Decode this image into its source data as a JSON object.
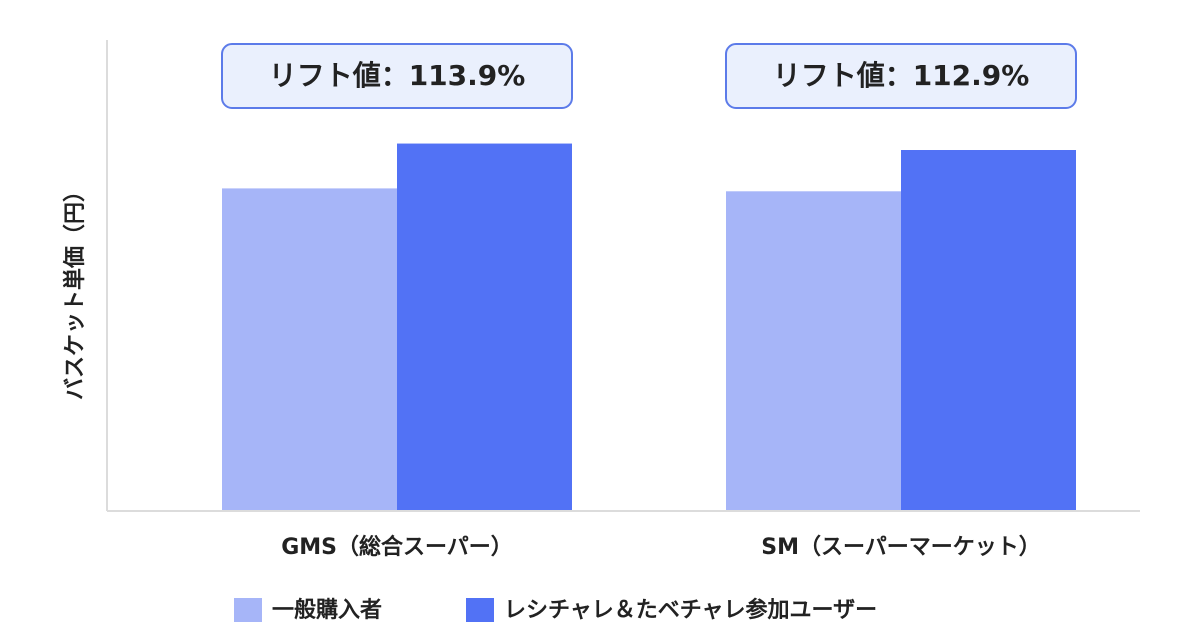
{
  "chart_data": {
    "type": "bar",
    "y_label": "バスケット単価（円）",
    "categories": [
      "GMS（総合スーパー）",
      "SM（スーパーマーケット）"
    ],
    "series": [
      {
        "name": "一般購入者",
        "color": "#a6b5f8",
        "values": [
          100,
          99.1
        ]
      },
      {
        "name": "レシチャレ＆たベチャレ参加ユーザー",
        "color": "#5272f5",
        "values": [
          113.9,
          111.9
        ]
      }
    ],
    "annotations": [
      "リフト値：113.9%",
      "リフト値：112.9%"
    ],
    "ylim": [
      0,
      146
    ],
    "grid": false
  }
}
